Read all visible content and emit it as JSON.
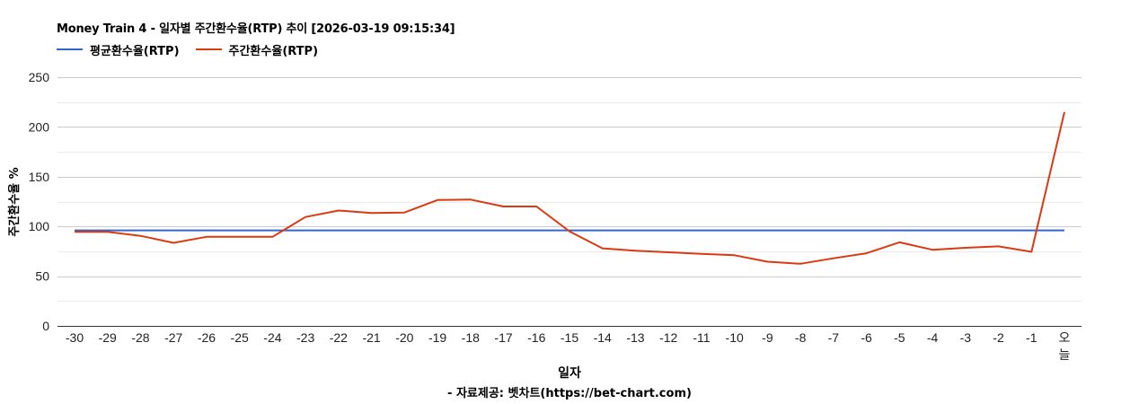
{
  "title": "Money Train 4 - 일자별 주간환수율(RTP) 추이 [2026-03-19 09:15:34]",
  "legend": [
    {
      "label": "평균환수율(RTP)",
      "color": "#3366cc"
    },
    {
      "label": "주간환수율(RTP)",
      "color": "#dc3912"
    }
  ],
  "axes": {
    "y_label": "주간환수율 %",
    "x_label": "일자"
  },
  "source": "- 자료제공: 벳차트(https://bet-chart.com)",
  "chart_data": {
    "type": "line",
    "title": "Money Train 4 - 일자별 주간환수율(RTP) 추이 [2026-03-19 09:15:34]",
    "xlabel": "일자",
    "ylabel": "주간환수율 %",
    "ylim": [
      0,
      250
    ],
    "yticks": [
      0,
      50,
      100,
      150,
      200,
      250
    ],
    "grid": true,
    "legend_position": "top",
    "categories": [
      "-30",
      "-29",
      "-28",
      "-27",
      "-26",
      "-25",
      "-24",
      "-23",
      "-22",
      "-21",
      "-20",
      "-19",
      "-18",
      "-17",
      "-16",
      "-15",
      "-14",
      "-13",
      "-12",
      "-11",
      "-10",
      "-9",
      "-8",
      "-7",
      "-6",
      "-5",
      "-4",
      "-3",
      "-2",
      "-1",
      "오늘"
    ],
    "series": [
      {
        "name": "평균환수율(RTP)",
        "color": "#3366cc",
        "values": [
          96,
          96,
          96,
          96,
          96,
          96,
          96,
          96,
          96,
          96,
          96,
          96,
          96,
          96,
          96,
          96,
          96,
          96,
          96,
          96,
          96,
          96,
          96,
          96,
          96,
          96,
          96,
          96,
          96,
          96,
          96
        ]
      },
      {
        "name": "주간환수율(RTP)",
        "color": "#dc3912",
        "values": [
          94.5,
          94.5,
          90.5,
          83.5,
          89.5,
          89.5,
          89.5,
          109.5,
          116,
          113.5,
          114,
          126.5,
          127,
          120,
          120,
          95,
          78,
          75.5,
          74,
          72.5,
          71,
          64.5,
          62.5,
          68,
          73,
          84,
          76.5,
          78.5,
          80,
          74.5,
          215
        ]
      }
    ],
    "annotations": [
      "- 자료제공: 벳차트(https://bet-chart.com)"
    ]
  }
}
